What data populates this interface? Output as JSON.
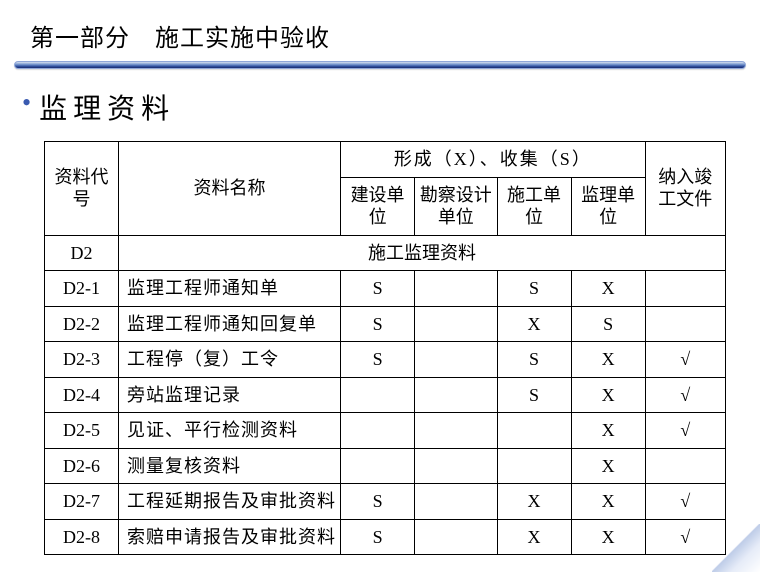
{
  "title": "第一部分　施工实施中验收",
  "section_title": "监理资料",
  "bullet_glyph": "•",
  "colors": {
    "bullet": "#3a5ab0",
    "rule_gradient_top": "#d6e0f0",
    "rule_gradient_mid": "#6a8cc8",
    "rule_gradient_low": "#2a4a9a",
    "rule_gradient_bot": "#1a2a6a",
    "border": "#000000",
    "text": "#000000",
    "background": "#ffffff"
  },
  "table": {
    "header": {
      "code": "资料代号",
      "name": "资料名称",
      "group": "形成（X）、收集（S）",
      "units": [
        "建设单位",
        "勘察设计单位",
        "施工单位",
        "监理单位"
      ],
      "include": "纳入竣工文件"
    },
    "section_row": {
      "code": "D2",
      "label": "施工监理资料"
    },
    "rows": [
      {
        "code": "D2-1",
        "name": "监理工程师通知单",
        "u1": "S",
        "u2": "",
        "u3": "S",
        "u4": "X",
        "inc": ""
      },
      {
        "code": "D2-2",
        "name": "监理工程师通知回复单",
        "u1": "S",
        "u2": "",
        "u3": "X",
        "u4": "S",
        "inc": ""
      },
      {
        "code": "D2-3",
        "name": "工程停（复）工令",
        "u1": "S",
        "u2": "",
        "u3": "S",
        "u4": "X",
        "inc": "√"
      },
      {
        "code": "D2-4",
        "name": "旁站监理记录",
        "u1": "",
        "u2": "",
        "u3": "S",
        "u4": "X",
        "inc": "√"
      },
      {
        "code": "D2-5",
        "name": "见证、平行检测资料",
        "u1": "",
        "u2": "",
        "u3": "",
        "u4": "X",
        "inc": "√"
      },
      {
        "code": "D2-6",
        "name": "测量复核资料",
        "u1": "",
        "u2": "",
        "u3": "",
        "u4": "X",
        "inc": ""
      },
      {
        "code": "D2-7",
        "name": "工程延期报告及审批资料",
        "u1": "S",
        "u2": "",
        "u3": "X",
        "u4": "X",
        "inc": "√"
      },
      {
        "code": "D2-8",
        "name": "索赔申请报告及审批资料",
        "u1": "S",
        "u2": "",
        "u3": "X",
        "u4": "X",
        "inc": "√"
      }
    ]
  }
}
